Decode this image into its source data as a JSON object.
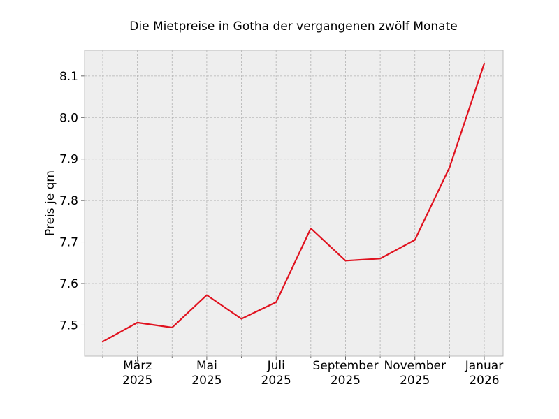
{
  "chart_data": {
    "type": "line",
    "title": "Die Mietpreise in Gotha der vergangenen zwölf Monate",
    "xlabel": "",
    "ylabel": "Preis je qm",
    "x": [
      "2025-02",
      "2025-03",
      "2025-04",
      "2025-05",
      "2025-06",
      "2025-07",
      "2025-08",
      "2025-09",
      "2025-10",
      "2025-11",
      "2025-12",
      "2026-01"
    ],
    "x_tick_labels": [
      {
        "x": "2025-03",
        "label": [
          "März",
          "2025"
        ]
      },
      {
        "x": "2025-05",
        "label": [
          "Mai",
          "2025"
        ]
      },
      {
        "x": "2025-07",
        "label": [
          "Juli",
          "2025"
        ]
      },
      {
        "x": "2025-09",
        "label": [
          "September",
          "2025"
        ]
      },
      {
        "x": "2025-11",
        "label": [
          "November",
          "2025"
        ]
      },
      {
        "x": "2026-01",
        "label": [
          "Januar",
          "2026"
        ]
      }
    ],
    "series": [
      {
        "values": [
          7.46,
          7.506,
          7.494,
          7.572,
          7.515,
          7.555,
          7.733,
          7.655,
          7.66,
          7.705,
          7.88,
          8.13
        ],
        "color": "#e0121f"
      }
    ],
    "yticks": [
      7.5,
      7.6,
      7.7,
      7.8,
      7.9,
      8.0,
      8.1
    ],
    "ylim": [
      7.425,
      8.162
    ],
    "xlim": [
      "2025-01",
      "2026-01"
    ],
    "grid": true,
    "plot_background": "#eeeeee"
  }
}
